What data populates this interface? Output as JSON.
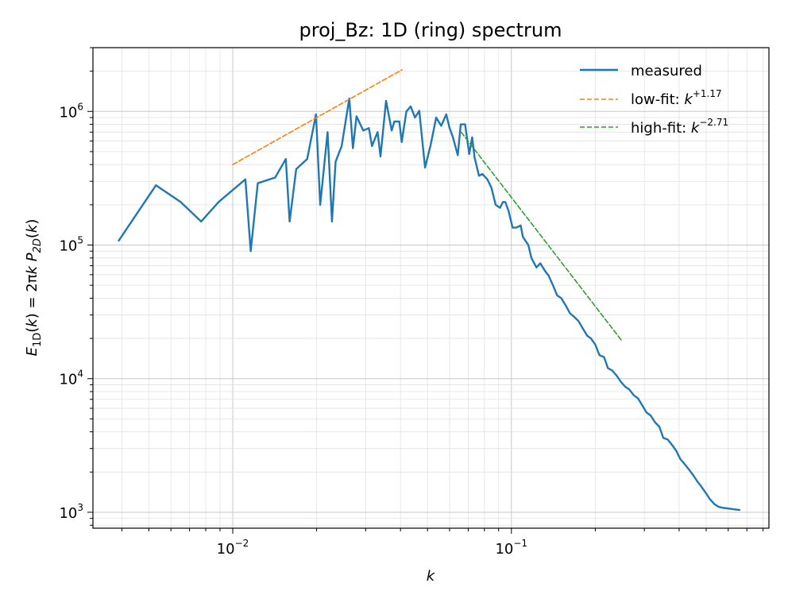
{
  "chart_data": {
    "type": "line",
    "title": "proj_Bz: 1D (ring) spectrum",
    "xlabel": "k",
    "ylabel": "E_1D(k) = 2πk P_2D(k)",
    "xscale": "log",
    "yscale": "log",
    "xlim": [
      0.00315,
      0.84
    ],
    "ylim": [
      760,
      3000000
    ],
    "grid": true,
    "legend_position": "top-right",
    "xticks": [
      {
        "base": "10",
        "exp": "−2"
      },
      {
        "base": "10",
        "exp": "−1"
      }
    ],
    "yticks": [
      {
        "base": "10",
        "exp": "3"
      },
      {
        "base": "10",
        "exp": "4"
      },
      {
        "base": "10",
        "exp": "5"
      },
      {
        "base": "10",
        "exp": "6"
      }
    ],
    "series": [
      {
        "name": "measured",
        "color": "#1f77b4",
        "style": "solid",
        "x": [
          0.0039,
          0.0053,
          0.0065,
          0.0077,
          0.0089,
          0.0111,
          0.0116,
          0.0123,
          0.0142,
          0.0155,
          0.016,
          0.0169,
          0.0185,
          0.0199,
          0.0206,
          0.0219,
          0.0227,
          0.0234,
          0.0246,
          0.0262,
          0.027,
          0.0278,
          0.0294,
          0.0308,
          0.0316,
          0.0331,
          0.0339,
          0.0355,
          0.0372,
          0.038,
          0.0396,
          0.0404,
          0.042,
          0.0435,
          0.0451,
          0.0467,
          0.049,
          0.0513,
          0.0537,
          0.056,
          0.0584,
          0.06,
          0.0617,
          0.0642,
          0.0658,
          0.0682,
          0.0706,
          0.0723,
          0.0738,
          0.0765,
          0.0787,
          0.082,
          0.0847,
          0.0878,
          0.091,
          0.0933,
          0.0951,
          0.0977,
          0.101,
          0.104,
          0.108,
          0.11,
          0.115,
          0.118,
          0.123,
          0.127,
          0.132,
          0.136,
          0.141,
          0.146,
          0.151,
          0.157,
          0.162,
          0.168,
          0.174,
          0.18,
          0.187,
          0.193,
          0.2,
          0.207,
          0.215,
          0.222,
          0.23,
          0.239,
          0.247,
          0.256,
          0.265,
          0.275,
          0.285,
          0.295,
          0.305,
          0.316,
          0.328,
          0.339,
          0.351,
          0.364,
          0.377,
          0.39,
          0.404,
          0.418,
          0.433,
          0.449,
          0.465,
          0.481,
          0.498,
          0.516,
          0.535,
          0.554,
          0.573,
          0.594,
          0.615,
          0.637,
          0.659
        ],
        "y": [
          108000,
          280000,
          210000,
          150000,
          210000,
          310000,
          90000,
          290000,
          320000,
          440000,
          150000,
          370000,
          440000,
          950000,
          200000,
          700000,
          150000,
          420000,
          550000,
          1250000,
          530000,
          920000,
          720000,
          750000,
          550000,
          700000,
          460000,
          1200000,
          720000,
          840000,
          840000,
          590000,
          1000000,
          1090000,
          900000,
          1010000,
          380000,
          560000,
          900000,
          780000,
          950000,
          750000,
          640000,
          470000,
          800000,
          800000,
          480000,
          640000,
          450000,
          330000,
          340000,
          310000,
          270000,
          200000,
          190000,
          210000,
          210000,
          180000,
          135000,
          135000,
          140000,
          115000,
          100000,
          80000,
          68000,
          73000,
          64000,
          59000,
          50000,
          42000,
          40000,
          35000,
          31000,
          29000,
          27000,
          24000,
          21000,
          20000,
          18000,
          15000,
          14500,
          12000,
          11500,
          10500,
          9500,
          8700,
          8300,
          7500,
          7100,
          6300,
          5600,
          5300,
          4700,
          4400,
          3600,
          3500,
          3200,
          2900,
          2500,
          2300,
          2100,
          1900,
          1700,
          1550,
          1400,
          1250,
          1150,
          1100,
          1080,
          1070,
          1060,
          1050,
          1040
        ],
        "width": 2.4
      },
      {
        "name": "low-fit: k^{+1.17}",
        "legend_base": "low-fit: ",
        "legend_k": "k",
        "legend_exp": "+1.17",
        "color": "#ff7f0e",
        "style": "dashed",
        "exponent": 1.17,
        "x": [
          0.01,
          0.0405
        ],
        "y": [
          400000,
          2050000
        ],
        "width": 1.6
      },
      {
        "name": "high-fit: k^{-2.71}",
        "legend_base": "high-fit: ",
        "legend_k": "k",
        "legend_exp": "−2.71",
        "color": "#2ca02c",
        "style": "dashed",
        "exponent": -2.71,
        "x": [
          0.066,
          0.25
        ],
        "y": [
          700000,
          19000
        ],
        "width": 1.6
      }
    ]
  }
}
